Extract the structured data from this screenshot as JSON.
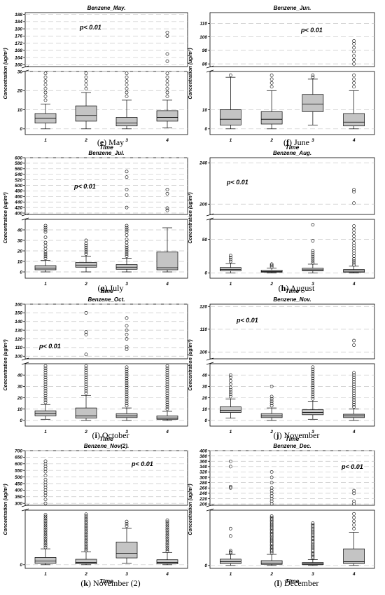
{
  "chart_data": [
    {
      "type": "box",
      "title": "Benzene_May.",
      "annotation": "p< 0.01",
      "caption_letter": "e",
      "caption_text": " May",
      "xlabel": "Time",
      "ylabel": "Concentration (ug/m³)",
      "categories": [
        "1",
        "2",
        "3",
        "4"
      ],
      "lower": {
        "ticks": [
          0,
          10,
          20,
          30
        ],
        "range": [
          -3,
          30
        ]
      },
      "upper": {
        "ticks": [
          160,
          164,
          168,
          172,
          176,
          180,
          184,
          188
        ],
        "range": [
          159,
          189
        ]
      },
      "boxes": [
        {
          "wlo": 0,
          "q1": 3,
          "med": 5.5,
          "q3": 8,
          "whi": 13,
          "out": [
            15,
            17,
            19,
            21,
            23,
            25,
            27,
            29
          ]
        },
        {
          "wlo": 0,
          "q1": 4,
          "med": 7,
          "q3": 12,
          "whi": 19,
          "out": [
            21,
            23,
            25,
            27,
            29
          ]
        },
        {
          "wlo": 0,
          "q1": 1.5,
          "med": 3,
          "q3": 6,
          "whi": 15,
          "out": [
            17,
            19,
            21,
            23,
            25,
            27,
            29
          ]
        },
        {
          "wlo": 0.5,
          "q1": 4,
          "med": 6,
          "q3": 9.5,
          "whi": 15,
          "out": [
            17,
            19,
            21,
            23,
            25,
            27,
            29,
            162,
            166,
            176,
            178
          ]
        }
      ]
    },
    {
      "type": "box",
      "title": "Benzene_Jun.",
      "annotation": "p< 0.01",
      "caption_letter": "f",
      "caption_text": " June",
      "xlabel": "Time",
      "ylabel": "Concentration (ug/m³)",
      "categories": [
        "1",
        "2",
        "3",
        "4"
      ],
      "lower": {
        "ticks": [
          0,
          10
        ],
        "range": [
          -3,
          30
        ]
      },
      "upper": {
        "ticks": [
          80,
          90,
          100,
          110
        ],
        "range": [
          78,
          118
        ]
      },
      "boxes": [
        {
          "wlo": 0,
          "q1": 2,
          "med": 5,
          "q3": 10,
          "whi": 27,
          "out": [
            28
          ]
        },
        {
          "wlo": 0,
          "q1": 2.5,
          "med": 5,
          "q3": 9,
          "whi": 20,
          "out": [
            22,
            24,
            26,
            28
          ]
        },
        {
          "wlo": 2,
          "q1": 9,
          "med": 13,
          "q3": 18,
          "whi": 26,
          "out": [
            27,
            28
          ]
        },
        {
          "wlo": 0,
          "q1": 1.5,
          "med": 3.5,
          "q3": 8,
          "whi": 20,
          "out": [
            22,
            24,
            26,
            28,
            80,
            83,
            86,
            89,
            92,
            95,
            97
          ]
        }
      ]
    },
    {
      "type": "box",
      "title": "Benzene_Jul.",
      "annotation": "p< 0.01",
      "caption_letter": "g",
      "caption_text": " July",
      "xlabel": "Time",
      "ylabel": "Concentration (ug/m³)",
      "categories": [
        "1",
        "2",
        "3",
        "4"
      ],
      "lower": {
        "ticks": [
          0,
          10,
          20,
          30,
          40
        ],
        "range": [
          -6,
          50
        ]
      },
      "upper": {
        "ticks": [
          400,
          420,
          440,
          460,
          480,
          500,
          520,
          540,
          560,
          580,
          600
        ],
        "range": [
          395,
          600
        ]
      },
      "boxes": [
        {
          "wlo": 0,
          "q1": 2,
          "med": 3.5,
          "q3": 6,
          "whi": 11,
          "out": [
            13,
            15,
            17,
            19,
            22,
            25,
            28,
            33,
            38,
            40,
            42,
            44
          ]
        },
        {
          "wlo": 0,
          "q1": 4.5,
          "med": 6.5,
          "q3": 9,
          "whi": 15,
          "out": [
            17,
            19,
            21,
            23,
            25,
            27,
            30
          ]
        },
        {
          "wlo": 0,
          "q1": 2.5,
          "med": 4.5,
          "q3": 7,
          "whi": 13,
          "out": [
            15,
            17,
            19,
            21,
            23,
            25,
            28,
            31,
            35,
            38,
            40,
            42,
            44,
            420,
            465,
            485,
            530,
            550
          ]
        },
        {
          "wlo": 0,
          "q1": 2,
          "med": 4,
          "q3": 19,
          "whi": 42,
          "out": [
            410,
            418,
            470,
            485
          ]
        }
      ]
    },
    {
      "type": "box",
      "title": "Benzene_Aug.",
      "annotation": "p< 0.01",
      "caption_letter": "h",
      "caption_text": " August",
      "xlabel": "Time",
      "ylabel": "Concentration (ug/m³)",
      "categories": [
        "1",
        "2",
        "3",
        "4"
      ],
      "lower": {
        "ticks": [
          0,
          50
        ],
        "range": [
          -8,
          80
        ]
      },
      "upper": {
        "ticks": [
          200,
          240
        ],
        "range": [
          190,
          245
        ]
      },
      "boxes": [
        {
          "wlo": 0,
          "q1": 3,
          "med": 5,
          "q3": 8,
          "whi": 14,
          "out": [
            17,
            20,
            23,
            26
          ]
        },
        {
          "wlo": 0,
          "q1": 1,
          "med": 2,
          "q3": 4,
          "whi": 7,
          "out": [
            9,
            11,
            13
          ]
        },
        {
          "wlo": 0,
          "q1": 3,
          "med": 4.5,
          "q3": 7,
          "whi": 13,
          "out": [
            15,
            18,
            21,
            24,
            27,
            30,
            33,
            48,
            72
          ]
        },
        {
          "wlo": 0,
          "q1": 1,
          "med": 2.5,
          "q3": 5,
          "whi": 10,
          "out": [
            12,
            15,
            18,
            21,
            25,
            29,
            33,
            37,
            41,
            45,
            50,
            55,
            60,
            65,
            70,
            201,
            212,
            214
          ]
        }
      ]
    },
    {
      "type": "box",
      "title": "Benzene_Oct.",
      "annotation": "p< 0.01",
      "caption_letter": "i",
      "caption_text": " October",
      "xlabel": "Time",
      "ylabel": "Concentration (ug/m³)",
      "categories": [
        "1",
        "2",
        "3",
        "4"
      ],
      "lower": {
        "ticks": [
          0,
          10,
          20,
          30,
          40
        ],
        "range": [
          -5,
          50
        ]
      },
      "upper": {
        "ticks": [
          100,
          110,
          120,
          130,
          140,
          150,
          160
        ],
        "range": [
          97,
          160
        ]
      },
      "boxes": [
        {
          "wlo": 1,
          "q1": 4,
          "med": 6,
          "q3": 8.5,
          "whi": 14,
          "out": [
            16,
            18,
            20,
            22,
            24,
            26,
            28,
            30,
            32,
            34,
            36,
            38,
            40,
            42,
            44,
            46,
            48
          ]
        },
        {
          "wlo": 0,
          "q1": 2,
          "med": 4,
          "q3": 11,
          "whi": 22,
          "out": [
            24,
            26,
            28,
            30,
            32,
            34,
            36,
            38,
            40,
            42,
            44,
            46,
            48,
            102,
            125,
            128,
            150
          ]
        },
        {
          "wlo": 0,
          "q1": 2.5,
          "med": 4,
          "q3": 6,
          "whi": 11,
          "out": [
            13,
            15,
            17,
            19,
            21,
            23,
            25,
            27,
            29,
            31,
            33,
            35,
            37,
            39,
            41,
            43,
            45,
            47,
            108,
            111,
            120,
            125,
            130,
            135,
            144
          ]
        },
        {
          "wlo": 0,
          "q1": 1,
          "med": 2,
          "q3": 4,
          "whi": 8,
          "out": [
            10,
            12,
            14,
            16,
            18,
            20,
            22,
            24,
            26,
            28,
            30,
            32,
            34,
            36,
            38,
            40,
            42,
            44,
            46,
            48
          ]
        }
      ]
    },
    {
      "type": "box",
      "title": "Benzene_Nov.",
      "annotation": "p< 0.01",
      "caption_letter": "j",
      "caption_text": " November",
      "xlabel": "Time",
      "ylabel": "Concentration (ug/m³)",
      "categories": [
        "1",
        "2",
        "3",
        "4"
      ],
      "lower": {
        "ticks": [
          0,
          10,
          20,
          30,
          40
        ],
        "range": [
          -5,
          50
        ]
      },
      "upper": {
        "ticks": [
          100,
          110,
          120
        ],
        "range": [
          97,
          121
        ]
      },
      "boxes": [
        {
          "wlo": 2,
          "q1": 7,
          "med": 9,
          "q3": 12,
          "whi": 19,
          "out": [
            21,
            23,
            25,
            27,
            29,
            32,
            35,
            38,
            40
          ]
        },
        {
          "wlo": 0,
          "q1": 2.5,
          "med": 4,
          "q3": 6,
          "whi": 11,
          "out": [
            13,
            15,
            17,
            19,
            21,
            30
          ]
        },
        {
          "wlo": 1,
          "q1": 5,
          "med": 7,
          "q3": 9.5,
          "whi": 17,
          "out": [
            19,
            21,
            23,
            25,
            27,
            29,
            31,
            33,
            35,
            37,
            39,
            41,
            43,
            45,
            47
          ]
        },
        {
          "wlo": 0,
          "q1": 2.5,
          "med": 4,
          "q3": 5.5,
          "whi": 10,
          "out": [
            12,
            14,
            16,
            18,
            20,
            22,
            24,
            26,
            28,
            30,
            32,
            34,
            36,
            38,
            40,
            42,
            103,
            105
          ]
        }
      ]
    },
    {
      "type": "box",
      "title": "Benzene_Nov(2).",
      "annotation": "p< 0.01",
      "caption_letter": "k",
      "caption_text": " November (2)",
      "xlabel": "Time",
      "ylabel": "Concentration (ug/m³)",
      "categories": [
        "1",
        "2",
        "3",
        "4"
      ],
      "lower": {
        "ticks": [
          0
        ],
        "range": [
          -8,
          120
        ]
      },
      "upper": {
        "ticks": [
          300,
          350,
          400,
          450,
          500,
          550,
          600,
          650,
          700
        ],
        "range": [
          285,
          700
        ]
      },
      "boxes": [
        {
          "wlo": 0,
          "q1": 3,
          "med": 8,
          "q3": 16,
          "whi": 35,
          "out": [
            38,
            42,
            46,
            50,
            54,
            58,
            62,
            66,
            70,
            74,
            78,
            82,
            86,
            90,
            94,
            98,
            102,
            106,
            110,
            300,
            330,
            360,
            380,
            400,
            420,
            440,
            460,
            480,
            510,
            540,
            560,
            580,
            600,
            620
          ]
        },
        {
          "wlo": 0,
          "q1": 2,
          "med": 5,
          "q3": 12,
          "whi": 28,
          "out": [
            31,
            35,
            39,
            43,
            47,
            51,
            55,
            59,
            63,
            67,
            71,
            75,
            79,
            83,
            87,
            91,
            95,
            99,
            103,
            107,
            111
          ]
        },
        {
          "wlo": 3,
          "q1": 15,
          "med": 25,
          "q3": 50,
          "whi": 80,
          "out": [
            85,
            90,
            95
          ]
        },
        {
          "wlo": 0,
          "q1": 2,
          "med": 5,
          "q3": 11,
          "whi": 27,
          "out": [
            30,
            34,
            38,
            42,
            46,
            50,
            54,
            58,
            62,
            66,
            70,
            74,
            78,
            82,
            86,
            90,
            94,
            98
          ]
        }
      ]
    },
    {
      "type": "box",
      "title": "Benzene_Dec.",
      "annotation": "p< 0.01",
      "caption_letter": "l",
      "caption_text": " December",
      "xlabel": "Time",
      "ylabel": "Concentration (ug/m³)",
      "categories": [
        "1",
        "2",
        "3",
        "4"
      ],
      "lower": {
        "ticks": [
          0
        ],
        "range": [
          -8,
          150
        ]
      },
      "upper": {
        "ticks": [
          200,
          220,
          240,
          260,
          280,
          300,
          320,
          340,
          360,
          380,
          400
        ],
        "range": [
          195,
          400
        ]
      },
      "boxes": [
        {
          "wlo": 0,
          "q1": 5,
          "med": 10,
          "q3": 17,
          "whi": 30,
          "out": [
            33,
            36,
            40,
            80,
            100,
            260,
            265,
            340,
            360
          ]
        },
        {
          "wlo": 0,
          "q1": 3,
          "med": 6,
          "q3": 13,
          "whi": 30,
          "out": [
            34,
            38,
            42,
            46,
            50,
            54,
            58,
            62,
            66,
            70,
            74,
            78,
            82,
            86,
            90,
            94,
            98,
            102,
            106,
            110,
            114,
            118,
            122,
            126,
            130,
            134,
            200,
            210,
            220,
            230,
            240,
            250,
            260,
            280,
            300,
            320
          ]
        },
        {
          "wlo": 0,
          "q1": 2,
          "med": 4,
          "q3": 8,
          "whi": 16,
          "out": [
            19,
            23,
            27,
            31,
            35,
            39,
            43,
            47,
            51,
            55,
            59,
            63,
            67,
            71,
            75,
            79,
            83,
            87,
            91,
            95,
            99,
            103,
            107,
            111,
            115
          ]
        },
        {
          "wlo": 0,
          "q1": 5,
          "med": 10,
          "q3": 45,
          "whi": 90,
          "out": [
            100,
            110,
            120,
            130,
            140,
            200,
            210,
            240,
            250
          ]
        }
      ]
    }
  ]
}
